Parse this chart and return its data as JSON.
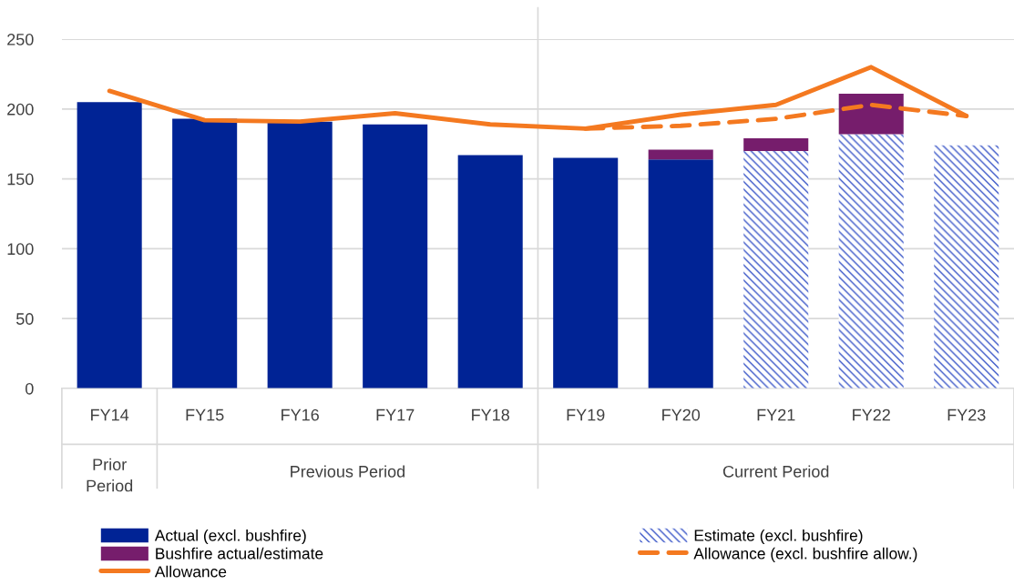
{
  "chart_data": {
    "type": "bar",
    "stacked": true,
    "categories": [
      "FY14",
      "FY15",
      "FY16",
      "FY17",
      "FY18",
      "FY19",
      "FY20",
      "FY21",
      "FY22",
      "FY23"
    ],
    "series": [
      {
        "name": "Actual (excl. bushfire)",
        "color": "#002395",
        "values": [
          205,
          193,
          191,
          189,
          167,
          165,
          164,
          null,
          null,
          null
        ]
      },
      {
        "name": "Estimate (excl. bushfire)",
        "color": "#3a56c8",
        "values": [
          null,
          null,
          null,
          null,
          null,
          null,
          null,
          170,
          182,
          174
        ]
      },
      {
        "name": "Bushfire actual/estimate",
        "color": "#761d6c",
        "values": [
          null,
          null,
          null,
          null,
          null,
          null,
          7,
          9,
          29,
          null
        ]
      },
      {
        "name": "Allowance (excl. bushfire allow.)",
        "type": "line",
        "line_style": "dashed",
        "color": "#f47920",
        "values": [
          null,
          null,
          null,
          null,
          null,
          186,
          188,
          193,
          203,
          195
        ]
      },
      {
        "name": "Allowance",
        "type": "line",
        "line_style": "solid",
        "color": "#f47920",
        "values": [
          213,
          192,
          191,
          197,
          189,
          186,
          196,
          203,
          230,
          195
        ]
      }
    ],
    "annotations": [
      "Prior Period",
      "Previous Period",
      "Current Period"
    ],
    "ylim": [
      0,
      250
    ],
    "yticks": [
      0,
      50,
      100,
      150,
      200,
      250
    ],
    "grid": "y",
    "legend": "bottom"
  }
}
